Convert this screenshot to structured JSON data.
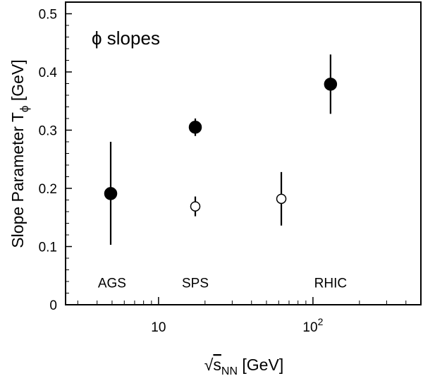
{
  "chart_data": {
    "type": "scatter",
    "title": "ϕ slopes",
    "xlabel": {
      "root": "√",
      "base": "s",
      "sub": "NN",
      "rest": " [GeV]"
    },
    "ylabel": {
      "main": "Slope Parameter T",
      "sub": "ϕ",
      "rest": " [GeV]"
    },
    "x_scale": "log",
    "xlim": [
      2.5,
      500
    ],
    "ylim": [
      0,
      0.52
    ],
    "y_ticks": [
      "0",
      "0.1",
      "0.2",
      "0.3",
      "0.4",
      "0.5"
    ],
    "x_ticks": [
      {
        "base": "10",
        "exp": ""
      },
      {
        "base": "10",
        "exp": "2"
      }
    ],
    "series": [
      {
        "marker": "filled-circle",
        "points": [
          {
            "x": 4.9,
            "y": 0.191,
            "err_low": 0.088,
            "err_high": 0.089
          },
          {
            "x": 17.3,
            "y": 0.305,
            "err_low": 0.015,
            "err_high": 0.015
          },
          {
            "x": 130,
            "y": 0.379,
            "err_low": 0.051,
            "err_high": 0.051
          }
        ]
      },
      {
        "marker": "open-circle",
        "points": [
          {
            "x": 17.3,
            "y": 0.169,
            "err_low": 0.017,
            "err_high": 0.017
          },
          {
            "x": 62.4,
            "y": 0.182,
            "err_low": 0.046,
            "err_high": 0.046
          }
        ]
      }
    ],
    "annotations": [
      {
        "text": "AGS",
        "x": 5.0,
        "y": 0.03
      },
      {
        "text": "SPS",
        "x": 17.3,
        "y": 0.03
      },
      {
        "text": "RHIC",
        "x": 130,
        "y": 0.03
      }
    ]
  }
}
